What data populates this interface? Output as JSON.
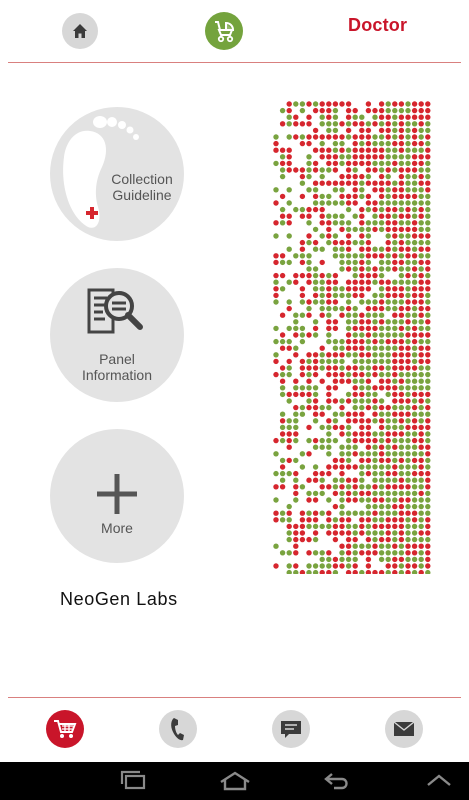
{
  "header": {
    "home_icon": "home-icon",
    "stroller_icon": "stroller-icon",
    "doctor_label": "Doctor"
  },
  "menu": {
    "items": [
      {
        "label_lines": [
          "Collection",
          "Guideline"
        ],
        "icon": "footprint-icon"
      },
      {
        "label_lines": [
          "Panel",
          "Information"
        ],
        "icon": "document-search-icon"
      },
      {
        "label_lines": [
          "More"
        ],
        "icon": "plus-icon"
      }
    ]
  },
  "brand": {
    "name": "NeoGen Labs"
  },
  "decoration": {
    "colors": {
      "red": "#d6262e",
      "green": "#79a33f"
    }
  },
  "footer": {
    "icons": [
      "cart-icon",
      "phone-icon",
      "message-icon",
      "mail-icon"
    ]
  },
  "system_nav": {
    "icons": [
      "recent-apps-icon",
      "home-nav-icon",
      "back-icon",
      "up-chevron-icon"
    ]
  },
  "colors": {
    "accent": "#c9152a",
    "green": "#74a33d",
    "grey": "#d7d7d7"
  }
}
